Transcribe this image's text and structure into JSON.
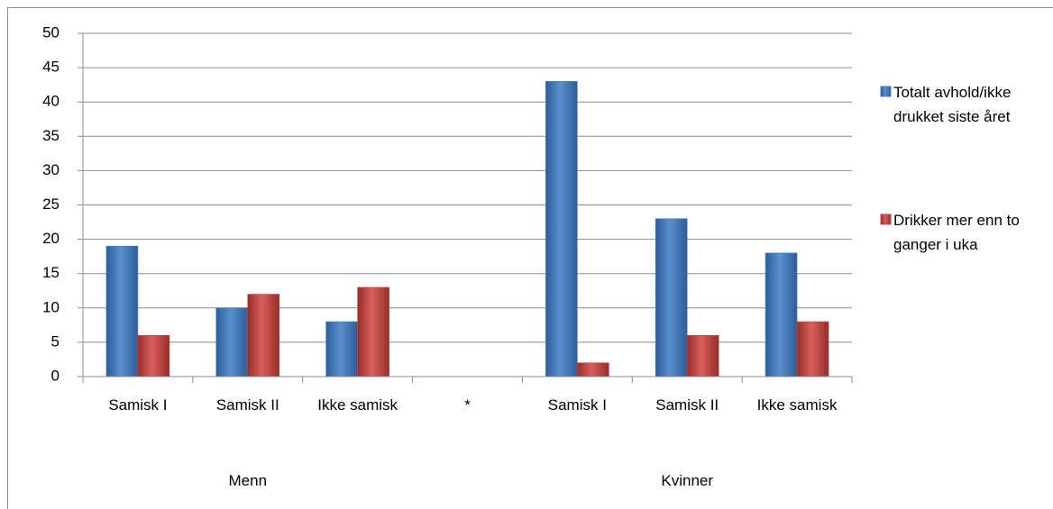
{
  "chart_data": {
    "type": "bar",
    "categories": [
      "Samisk I",
      "Samisk II",
      "Ikke samisk",
      "*",
      "Samisk I",
      "Samisk II",
      "Ikke samisk"
    ],
    "groups": [
      "Menn",
      "Kvinner"
    ],
    "series": [
      {
        "name": "Totalt avhold/ikke drukket siste året",
        "color": "#4a7ebb",
        "values": [
          19,
          10,
          8,
          null,
          43,
          23,
          18
        ]
      },
      {
        "name": "Drikker mer enn to ganger i uka",
        "color": "#be4b48",
        "values": [
          6,
          12,
          13,
          null,
          2,
          6,
          8
        ]
      }
    ],
    "ylim": [
      0,
      50
    ],
    "yticks": [
      0,
      5,
      10,
      15,
      20,
      25,
      30,
      35,
      40,
      45,
      50
    ],
    "grid": true,
    "legend": "right"
  }
}
